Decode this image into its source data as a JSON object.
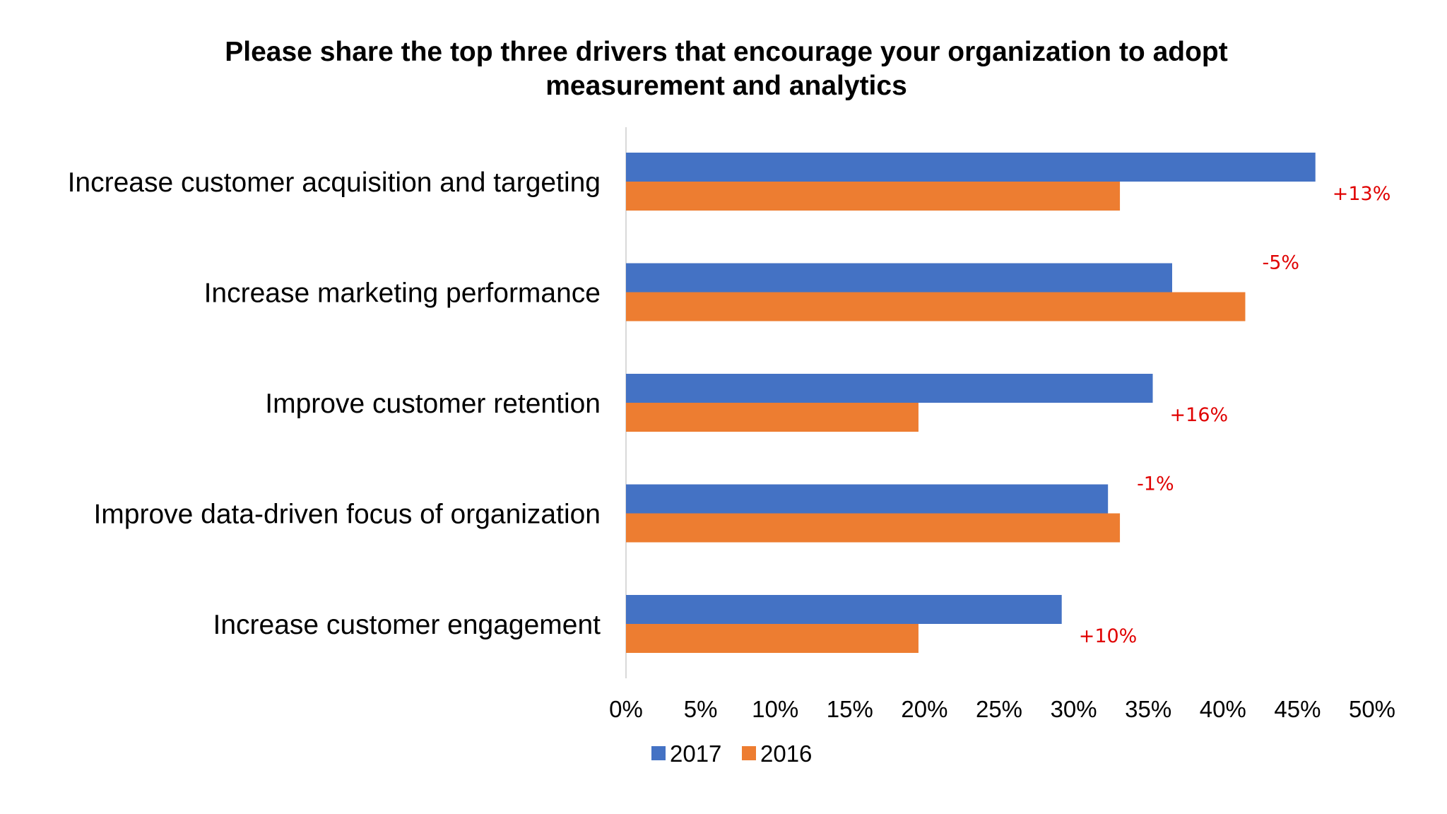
{
  "chart_data": {
    "type": "bar",
    "orientation": "horizontal",
    "title": "Please share the top three drivers that encourage your organization to adopt measurement and analytics",
    "title_lines": [
      "Please share the top three drivers that encourage your organization to adopt",
      "measurement and analytics"
    ],
    "categories": [
      "Increase customer acquisition and targeting",
      "Increase marketing performance",
      "Improve customer retention",
      "Improve data-driven focus of organization",
      "Increase customer engagement"
    ],
    "series": [
      {
        "name": "2017",
        "color": "#4472C4",
        "values": [
          46.2,
          36.6,
          35.3,
          32.3,
          29.2
        ]
      },
      {
        "name": "2016",
        "color": "#ED7D31",
        "values": [
          33.1,
          41.5,
          19.6,
          33.1,
          19.6
        ]
      }
    ],
    "annotations": [
      "+13%",
      "-5%",
      "+16%",
      "-1%",
      "+10%"
    ],
    "annotation_color": "#E00000",
    "xlim": [
      0,
      50
    ],
    "x_ticks": [
      "0%",
      "5%",
      "10%",
      "15%",
      "20%",
      "25%",
      "30%",
      "35%",
      "40%",
      "45%",
      "50%"
    ],
    "grid": false,
    "legend_position": "bottom"
  }
}
